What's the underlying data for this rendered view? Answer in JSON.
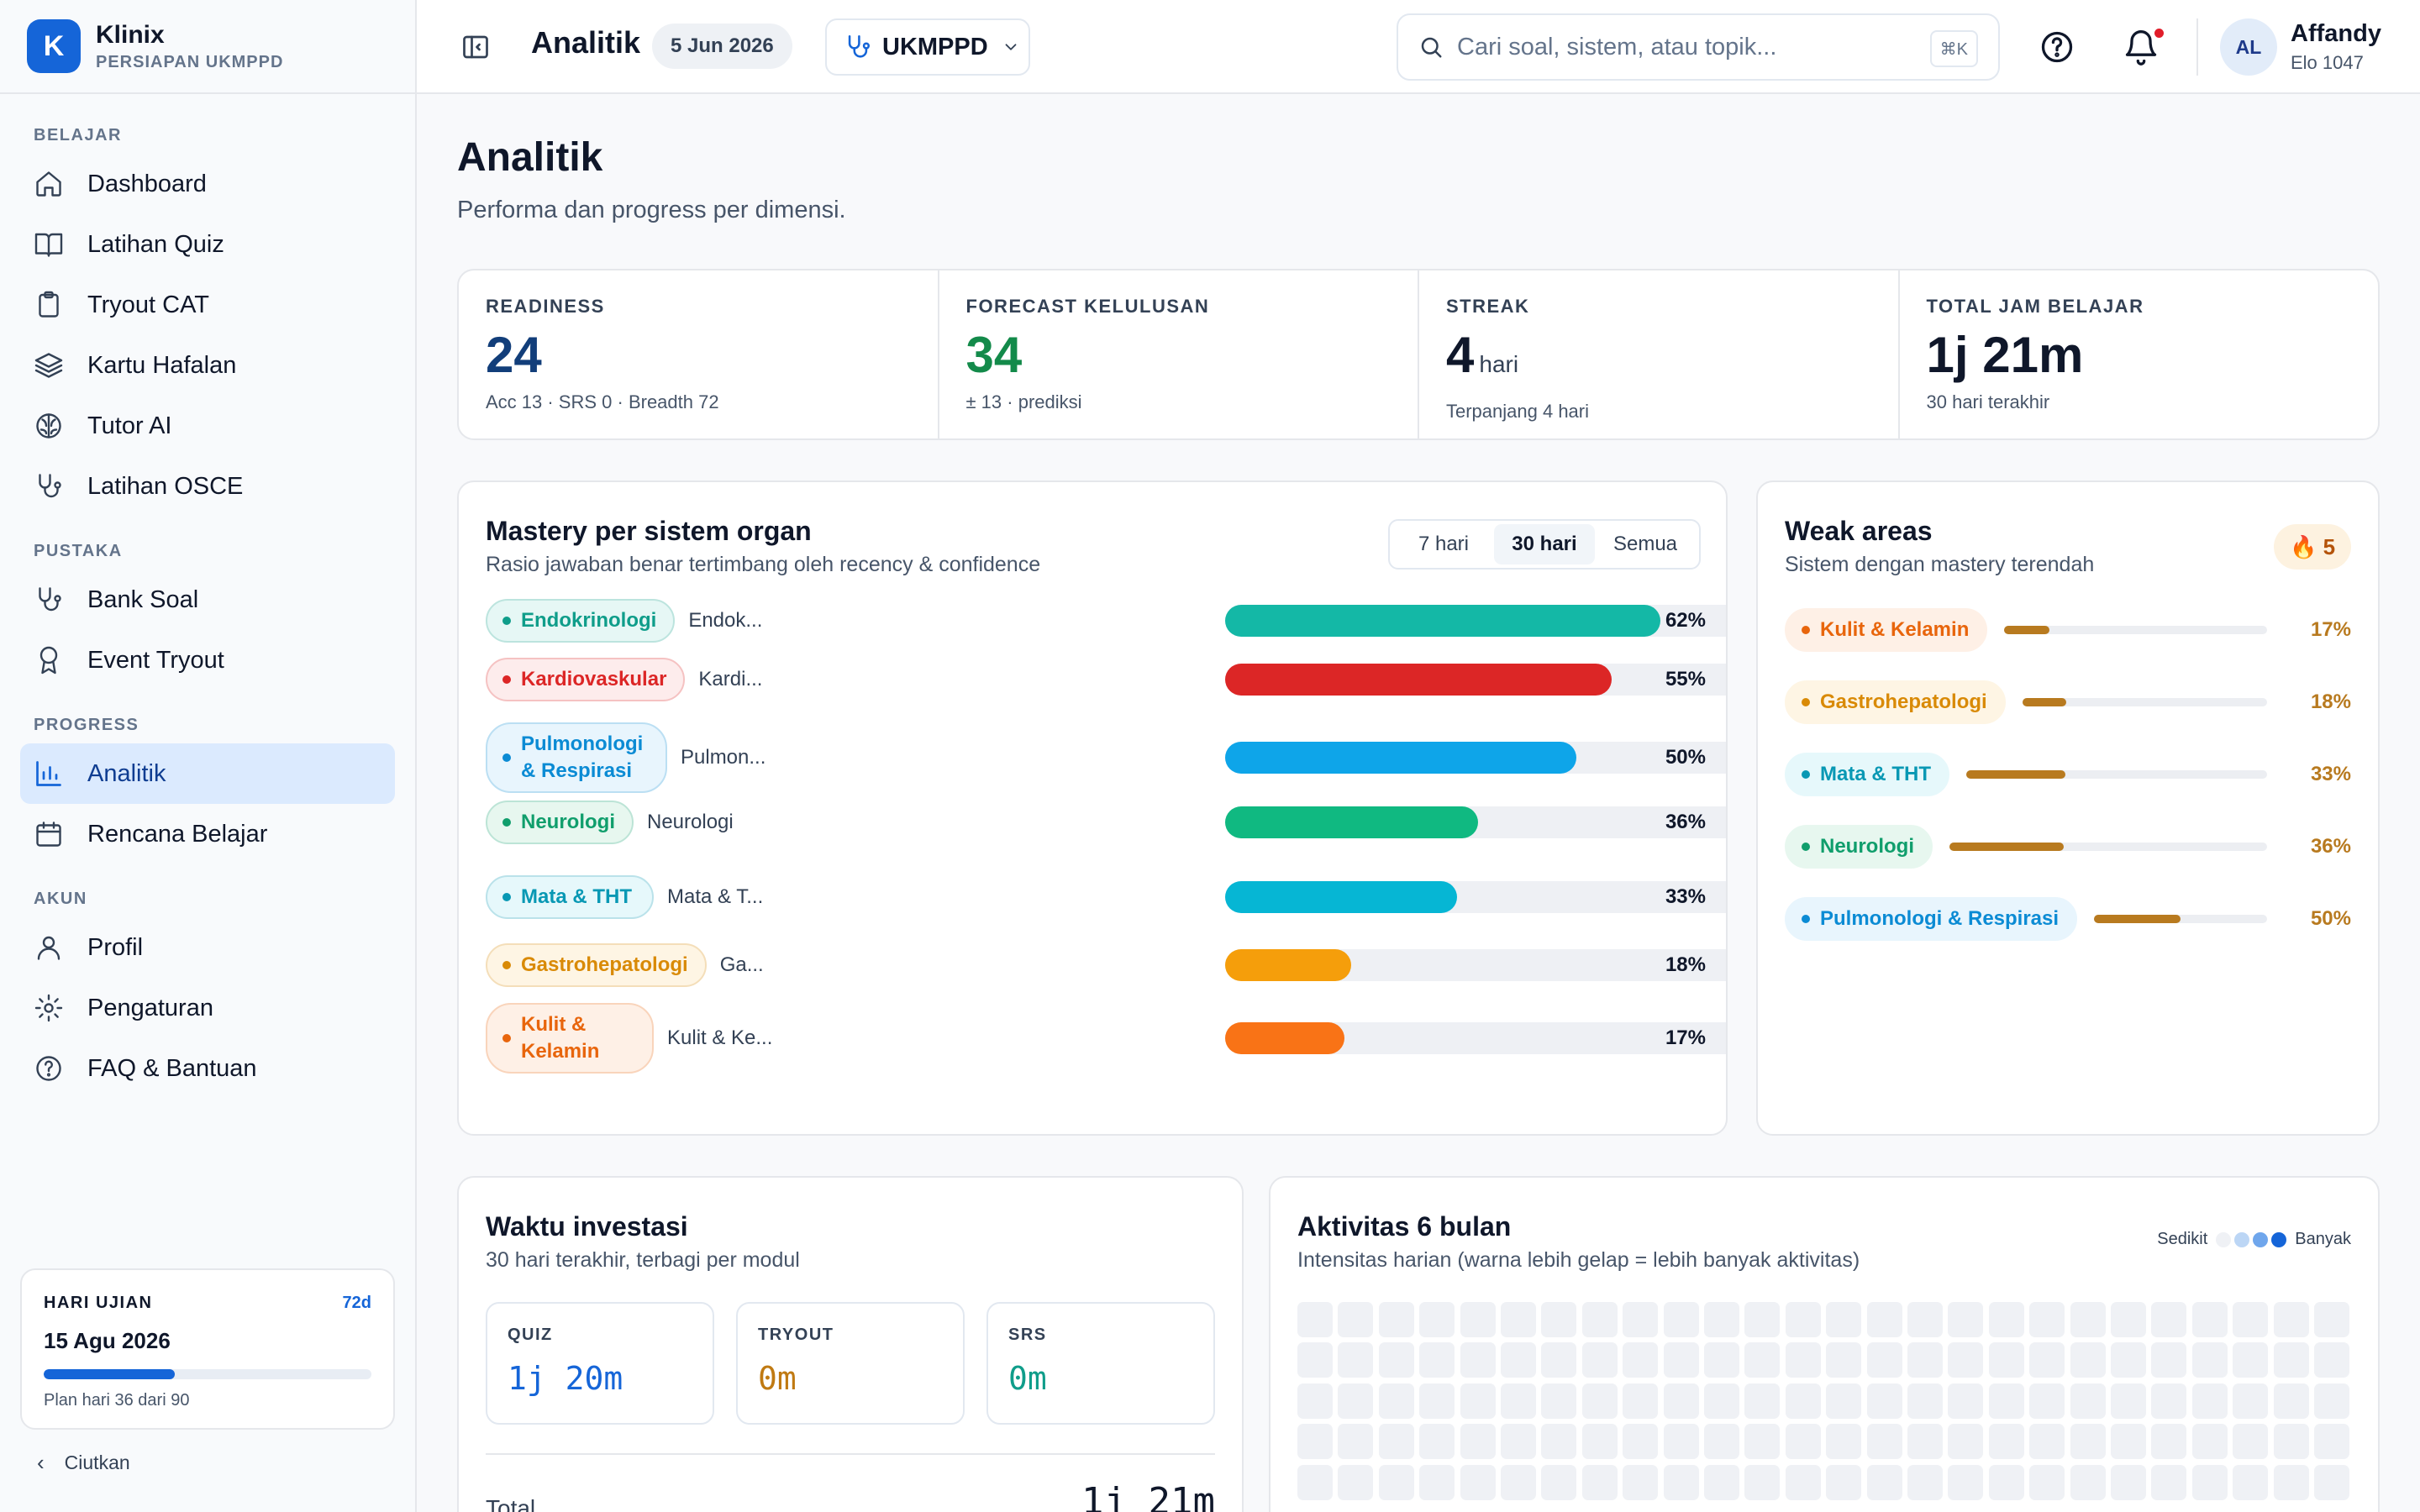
{
  "brand": {
    "name": "Klinix",
    "subtitle": "PERSIAPAN UKMPPD",
    "logo_letter": "K"
  },
  "sidebar": {
    "sections": [
      {
        "label": "BELAJAR",
        "items": [
          {
            "label": "Dashboard",
            "icon": "home-icon"
          },
          {
            "label": "Latihan Quiz",
            "icon": "book-icon"
          },
          {
            "label": "Tryout CAT",
            "icon": "clipboard-icon"
          },
          {
            "label": "Kartu Hafalan",
            "icon": "layers-icon"
          },
          {
            "label": "Tutor AI",
            "icon": "brain-icon"
          },
          {
            "label": "Latihan OSCE",
            "icon": "stethoscope-icon"
          }
        ]
      },
      {
        "label": "PUSTAKA",
        "items": [
          {
            "label": "Bank Soal",
            "icon": "stethoscope-icon"
          },
          {
            "label": "Event Tryout",
            "icon": "award-icon"
          }
        ]
      },
      {
        "label": "PROGRESS",
        "items": [
          {
            "label": "Analitik",
            "icon": "bar-chart-icon",
            "active": true
          },
          {
            "label": "Rencana Belajar",
            "icon": "calendar-icon"
          }
        ]
      },
      {
        "label": "AKUN",
        "items": [
          {
            "label": "Profil",
            "icon": "user-icon"
          },
          {
            "label": "Pengaturan",
            "icon": "gear-icon"
          },
          {
            "label": "FAQ & Bantuan",
            "icon": "help-circle-icon"
          }
        ]
      }
    ],
    "exam_card": {
      "label": "HARI UJIAN",
      "days_left": "72d",
      "date": "15 Agu 2026",
      "progress": 0.4,
      "plan_text": "Plan hari 36 dari 90"
    },
    "collapse_label": "Ciutkan"
  },
  "topbar": {
    "title": "Analitik",
    "date": "5 Jun 2026",
    "exam_select": "UKMPPD",
    "search_placeholder": "Cari soal, sistem, atau topik...",
    "search_shortcut": "⌘K",
    "user": {
      "initials": "AL",
      "name": "Affandy",
      "elo": "Elo 1047"
    }
  },
  "page": {
    "title": "Analitik",
    "subtitle": "Performa dan progress per dimensi."
  },
  "stats": [
    {
      "label": "READINESS",
      "value": "24",
      "unit": "",
      "sub": "Acc 13 · SRS 0 · Breadth 72",
      "color": "#123e7a"
    },
    {
      "label": "FORECAST KELULUSAN",
      "value": "34",
      "unit": "",
      "sub": "± 13 · prediksi",
      "color": "#138a4a"
    },
    {
      "label": "STREAK",
      "value": "4",
      "unit": "hari",
      "sub": "Terpanjang 4 hari",
      "color": "#0f172a"
    },
    {
      "label": "TOTAL JAM BELAJAR",
      "value": "1j 21m",
      "unit": "",
      "sub": "30 hari terakhir",
      "color": "#0f172a"
    }
  ],
  "mastery": {
    "title": "Mastery per sistem organ",
    "subtitle": "Rasio jawaban benar tertimbang oleh recency & confidence",
    "ranges": [
      "7 hari",
      "30 hari",
      "Semua"
    ],
    "active_range": "30 hari",
    "rows": [
      {
        "chip": "Endokrinologi",
        "name": "Endok...",
        "value": 62,
        "pct": "62%",
        "color": "#14b8a6",
        "chip_bg": "#e6f7f5",
        "chip_fg": "#0f9d8a"
      },
      {
        "chip": "Kardiovaskular",
        "name": "Kardi...",
        "value": 55,
        "pct": "55%",
        "color": "#dc2626",
        "chip_bg": "#fdecec",
        "chip_fg": "#dc2626"
      },
      {
        "chip": "Pulmonologi & Respirasi",
        "name": "Pulmon...",
        "value": 50,
        "pct": "50%",
        "color": "#0ea5e9",
        "chip_bg": "#e8f5fd",
        "chip_fg": "#0b8bd4"
      },
      {
        "chip": "Neurologi",
        "name": "Neurologi",
        "value": 36,
        "pct": "36%",
        "color": "#10b981",
        "chip_bg": "#e7f7ef",
        "chip_fg": "#109e6c"
      },
      {
        "chip": "Mata & THT",
        "name": "Mata & T...",
        "value": 33,
        "pct": "33%",
        "color": "#06b6d4",
        "chip_bg": "#e6f8fb",
        "chip_fg": "#0898b4"
      },
      {
        "chip": "Gastrohepatologi",
        "name": "Ga...",
        "value": 18,
        "pct": "18%",
        "color": "#f59e0b",
        "chip_bg": "#fef5e4",
        "chip_fg": "#d98a06"
      },
      {
        "chip": "Kulit & Kelamin",
        "name": "Kulit & Ke...",
        "value": 17,
        "pct": "17%",
        "color": "#f97316",
        "chip_bg": "#fef0e6",
        "chip_fg": "#e8650c"
      }
    ]
  },
  "weak": {
    "title": "Weak areas",
    "subtitle": "Sistem dengan mastery terendah",
    "badge": "🔥 5",
    "rows": [
      {
        "chip": "Kulit & Kelamin",
        "value": 17,
        "pct": "17%",
        "chip_bg": "#fef0e6",
        "chip_fg": "#e8650c"
      },
      {
        "chip": "Gastrohepatologi",
        "value": 18,
        "pct": "18%",
        "chip_bg": "#fef5e4",
        "chip_fg": "#d98a06"
      },
      {
        "chip": "Mata & THT",
        "value": 33,
        "pct": "33%",
        "chip_bg": "#e6f8fb",
        "chip_fg": "#0898b4"
      },
      {
        "chip": "Neurologi",
        "value": 36,
        "pct": "36%",
        "chip_bg": "#e7f7ef",
        "chip_fg": "#109e6c"
      },
      {
        "chip": "Pulmonologi & Respirasi",
        "value": 50,
        "pct": "50%",
        "chip_bg": "#e8f5fd",
        "chip_fg": "#0b8bd4"
      }
    ]
  },
  "time": {
    "title": "Waktu investasi",
    "subtitle": "30 hari terakhir, terbagi per modul",
    "modules": [
      {
        "label": "QUIZ",
        "value": "1j 20m",
        "color": "#1565d8"
      },
      {
        "label": "TRYOUT",
        "value": "0m",
        "color": "#c07a12"
      },
      {
        "label": "SRS",
        "value": "0m",
        "color": "#0f9d8a"
      }
    ],
    "total_label": "Total",
    "total_value": "1j 21m"
  },
  "activity": {
    "title": "Aktivitas 6 bulan",
    "subtitle": "Intensitas harian (warna lebih gelap = lebih banyak aktivitas)",
    "legend_low": "Sedikit",
    "legend_high": "Banyak",
    "legend_colors": [
      "#eff1f5",
      "#bcd6f5",
      "#6fa6ec",
      "#1565d8"
    ],
    "empty_color": "#eff1f5"
  }
}
